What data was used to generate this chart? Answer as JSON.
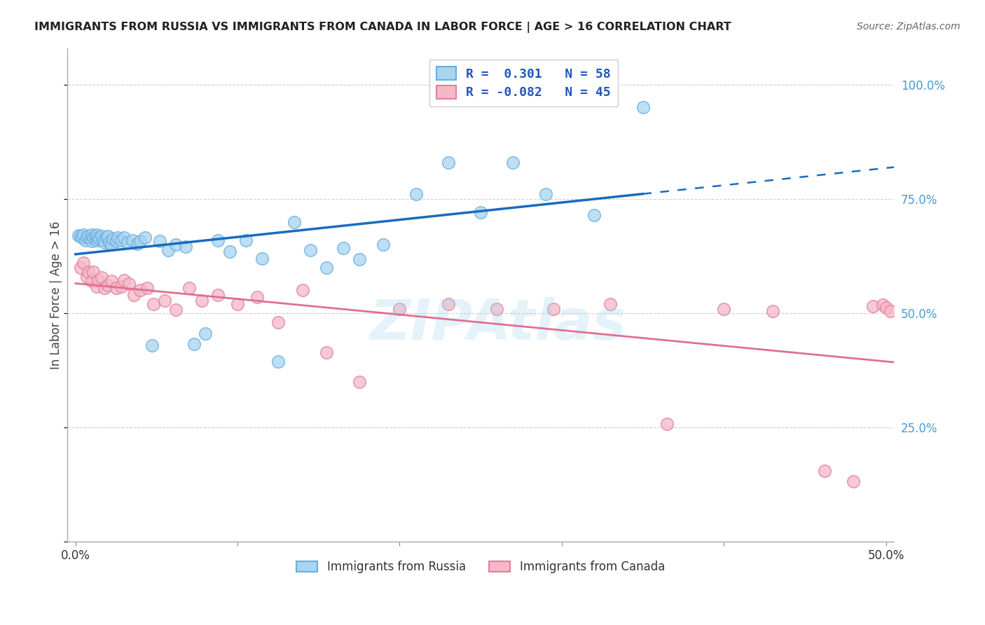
{
  "title": "IMMIGRANTS FROM RUSSIA VS IMMIGRANTS FROM CANADA IN LABOR FORCE | AGE > 16 CORRELATION CHART",
  "source": "Source: ZipAtlas.com",
  "ylabel": "In Labor Force | Age > 16",
  "xlim": [
    -0.005,
    0.505
  ],
  "ylim": [
    0.0,
    1.08
  ],
  "background_color": "#ffffff",
  "grid_color": "#d0d0d0",
  "legend_R_russia": " 0.301",
  "legend_N_russia": "58",
  "legend_R_canada": "-0.082",
  "legend_N_canada": "45",
  "russia_scatter_color": "#a8d4f0",
  "russia_edge_color": "#6aaee0",
  "canada_scatter_color": "#f5b8c8",
  "canada_edge_color": "#e080a0",
  "trendline_russia_color": "#1a6bbf",
  "trendline_canada_color": "#e07090",
  "watermark": "ZIPAtlas",
  "russia_x": [
    0.002,
    0.003,
    0.004,
    0.005,
    0.006,
    0.007,
    0.008,
    0.009,
    0.01,
    0.01,
    0.011,
    0.012,
    0.013,
    0.013,
    0.014,
    0.015,
    0.016,
    0.017,
    0.018,
    0.019,
    0.02,
    0.021,
    0.022,
    0.023,
    0.025,
    0.026,
    0.028,
    0.03,
    0.032,
    0.035,
    0.038,
    0.04,
    0.043,
    0.047,
    0.052,
    0.057,
    0.062,
    0.068,
    0.073,
    0.08,
    0.088,
    0.095,
    0.105,
    0.115,
    0.125,
    0.135,
    0.145,
    0.155,
    0.165,
    0.175,
    0.19,
    0.21,
    0.23,
    0.25,
    0.27,
    0.29,
    0.32,
    0.35
  ],
  "russia_y": [
    0.67,
    0.668,
    0.665,
    0.672,
    0.66,
    0.665,
    0.668,
    0.662,
    0.658,
    0.672,
    0.665,
    0.668,
    0.66,
    0.672,
    0.665,
    0.662,
    0.668,
    0.66,
    0.655,
    0.665,
    0.668,
    0.655,
    0.65,
    0.662,
    0.658,
    0.665,
    0.66,
    0.665,
    0.655,
    0.66,
    0.652,
    0.658,
    0.665,
    0.43,
    0.658,
    0.638,
    0.65,
    0.645,
    0.432,
    0.455,
    0.66,
    0.635,
    0.66,
    0.62,
    0.395,
    0.7,
    0.638,
    0.6,
    0.642,
    0.618,
    0.65,
    0.76,
    0.83,
    0.72,
    0.83,
    0.76,
    0.715,
    0.95
  ],
  "canada_x": [
    0.003,
    0.005,
    0.007,
    0.008,
    0.01,
    0.011,
    0.013,
    0.014,
    0.016,
    0.018,
    0.02,
    0.022,
    0.025,
    0.028,
    0.03,
    0.033,
    0.036,
    0.04,
    0.044,
    0.048,
    0.055,
    0.062,
    0.07,
    0.078,
    0.088,
    0.1,
    0.112,
    0.125,
    0.14,
    0.155,
    0.175,
    0.2,
    0.23,
    0.26,
    0.295,
    0.33,
    0.365,
    0.4,
    0.43,
    0.462,
    0.48,
    0.492,
    0.498,
    0.5,
    0.503
  ],
  "canada_y": [
    0.6,
    0.61,
    0.58,
    0.59,
    0.57,
    0.59,
    0.558,
    0.572,
    0.578,
    0.555,
    0.562,
    0.57,
    0.555,
    0.558,
    0.572,
    0.565,
    0.54,
    0.55,
    0.555,
    0.52,
    0.528,
    0.508,
    0.555,
    0.528,
    0.54,
    0.52,
    0.535,
    0.48,
    0.55,
    0.415,
    0.35,
    0.51,
    0.52,
    0.51,
    0.51,
    0.52,
    0.258,
    0.51,
    0.505,
    0.155,
    0.132,
    0.515,
    0.518,
    0.512,
    0.505
  ]
}
